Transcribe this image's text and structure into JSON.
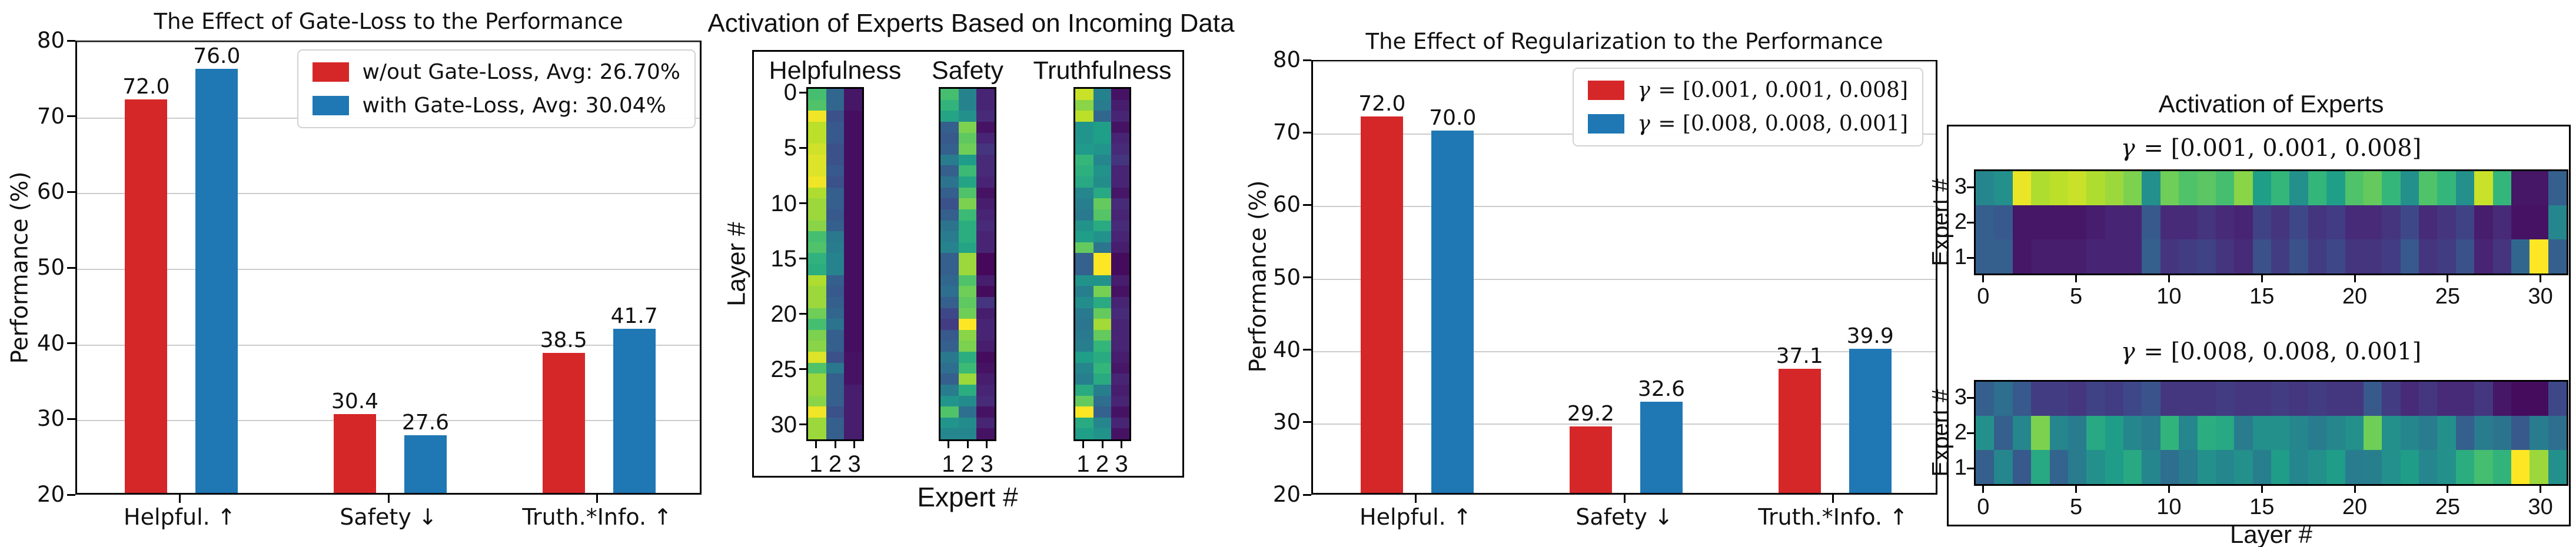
{
  "colors": {
    "red": "#d62728",
    "blue": "#1f77b4",
    "grid": "#cccccc",
    "spine": "#000000",
    "text": "#111111",
    "legend_border": "#d2d2d2",
    "background": "#ffffff"
  },
  "chart_data": [
    {
      "id": "gate_loss_bar",
      "type": "bar",
      "title": "The Effect of Gate-Loss to the Performance",
      "ylabel": "Performance (%)",
      "ylim": [
        20,
        80
      ],
      "yticks": [
        20,
        30,
        40,
        50,
        60,
        70,
        80
      ],
      "grid": true,
      "legend_position": "upper right",
      "categories": [
        "Helpful. ↑",
        "Safety ↓",
        "Truth.*Info. ↑"
      ],
      "series": [
        {
          "name": "w/out Gate-Loss, Avg: 26.70%",
          "color_key": "red",
          "math": false,
          "values": [
            72.0,
            30.4,
            38.5
          ],
          "labels": [
            "72.0",
            "30.4",
            "38.5"
          ]
        },
        {
          "name": "with Gate-Loss, Avg: 30.04%",
          "color_key": "blue",
          "math": false,
          "values": [
            76.0,
            27.6,
            41.7
          ],
          "labels": [
            "76.0",
            "27.6",
            "41.7"
          ]
        }
      ]
    },
    {
      "id": "activation_incoming_heatmaps",
      "type": "heatmap",
      "title": "Activation of Experts Based on Incoming Data",
      "xlabel": "Expert #",
      "ylabel": "Layer #",
      "colormap": "viridis",
      "orientation": "vertical",
      "xticks": [
        "1",
        "2",
        "3"
      ],
      "yticks": [
        "0",
        "5",
        "10",
        "15",
        "20",
        "25",
        "30"
      ],
      "ytick_layer_step": 5,
      "subplots": [
        {
          "label": "Helpfulness",
          "rows": 32,
          "cols": 3,
          "values": [
            [
              0.7,
              0.33,
              0.06
            ],
            [
              0.72,
              0.33,
              0.06
            ],
            [
              0.98,
              0.25,
              0.04
            ],
            [
              0.9,
              0.28,
              0.04
            ],
            [
              0.9,
              0.28,
              0.04
            ],
            [
              0.93,
              0.25,
              0.04
            ],
            [
              0.95,
              0.25,
              0.04
            ],
            [
              0.95,
              0.28,
              0.04
            ],
            [
              0.98,
              0.25,
              0.04
            ],
            [
              0.88,
              0.3,
              0.04
            ],
            [
              0.85,
              0.3,
              0.04
            ],
            [
              0.85,
              0.28,
              0.04
            ],
            [
              0.82,
              0.3,
              0.04
            ],
            [
              0.7,
              0.4,
              0.04
            ],
            [
              0.72,
              0.42,
              0.04
            ],
            [
              0.64,
              0.45,
              0.04
            ],
            [
              0.62,
              0.45,
              0.04
            ],
            [
              0.88,
              0.3,
              0.04
            ],
            [
              0.85,
              0.28,
              0.04
            ],
            [
              0.85,
              0.3,
              0.04
            ],
            [
              0.78,
              0.33,
              0.04
            ],
            [
              0.7,
              0.38,
              0.04
            ],
            [
              0.8,
              0.3,
              0.04
            ],
            [
              0.82,
              0.3,
              0.04
            ],
            [
              0.95,
              0.25,
              0.05
            ],
            [
              0.72,
              0.4,
              0.05
            ],
            [
              0.85,
              0.3,
              0.05
            ],
            [
              0.85,
              0.3,
              0.08
            ],
            [
              0.82,
              0.3,
              0.08
            ],
            [
              0.98,
              0.25,
              0.08
            ],
            [
              0.85,
              0.3,
              0.08
            ],
            [
              0.85,
              0.3,
              0.08
            ]
          ]
        },
        {
          "label": "Safety",
          "rows": 32,
          "cols": 3,
          "values": [
            [
              0.7,
              0.45,
              0.1
            ],
            [
              0.65,
              0.45,
              0.1
            ],
            [
              0.58,
              0.5,
              0.12
            ],
            [
              0.3,
              0.8,
              0.05
            ],
            [
              0.28,
              0.75,
              0.1
            ],
            [
              0.3,
              0.78,
              0.15
            ],
            [
              0.42,
              0.55,
              0.12
            ],
            [
              0.3,
              0.68,
              0.12
            ],
            [
              0.38,
              0.58,
              0.1
            ],
            [
              0.3,
              0.72,
              0.05
            ],
            [
              0.25,
              0.8,
              0.08
            ],
            [
              0.3,
              0.68,
              0.1
            ],
            [
              0.38,
              0.62,
              0.12
            ],
            [
              0.42,
              0.62,
              0.1
            ],
            [
              0.45,
              0.58,
              0.1
            ],
            [
              0.3,
              0.85,
              0.02
            ],
            [
              0.3,
              0.85,
              0.02
            ],
            [
              0.33,
              0.72,
              0.08
            ],
            [
              0.36,
              0.78,
              0.03
            ],
            [
              0.3,
              0.75,
              0.15
            ],
            [
              0.22,
              0.78,
              0.08
            ],
            [
              0.18,
              1.0,
              0.1
            ],
            [
              0.28,
              0.82,
              0.1
            ],
            [
              0.3,
              0.8,
              0.08
            ],
            [
              0.4,
              0.62,
              0.03
            ],
            [
              0.36,
              0.68,
              0.05
            ],
            [
              0.3,
              0.85,
              0.08
            ],
            [
              0.42,
              0.62,
              0.1
            ],
            [
              0.52,
              0.48,
              0.12
            ],
            [
              0.72,
              0.36,
              0.05
            ],
            [
              0.52,
              0.48,
              0.1
            ],
            [
              0.46,
              0.46,
              0.05
            ]
          ]
        },
        {
          "label": "Truthfulness",
          "rows": 32,
          "cols": 3,
          "values": [
            [
              0.92,
              0.44,
              0.05
            ],
            [
              0.82,
              0.42,
              0.08
            ],
            [
              0.9,
              0.33,
              0.1
            ],
            [
              0.52,
              0.56,
              0.05
            ],
            [
              0.52,
              0.56,
              0.1
            ],
            [
              0.54,
              0.52,
              0.12
            ],
            [
              0.66,
              0.46,
              0.15
            ],
            [
              0.63,
              0.51,
              0.1
            ],
            [
              0.6,
              0.49,
              0.1
            ],
            [
              0.46,
              0.6,
              0.06
            ],
            [
              0.43,
              0.76,
              0.12
            ],
            [
              0.41,
              0.73,
              0.1
            ],
            [
              0.51,
              0.61,
              0.12
            ],
            [
              0.56,
              0.51,
              0.1
            ],
            [
              0.76,
              0.39,
              0.08
            ],
            [
              0.31,
              1.0,
              0.03
            ],
            [
              0.31,
              1.0,
              0.03
            ],
            [
              0.51,
              0.51,
              0.08
            ],
            [
              0.43,
              0.79,
              0.05
            ],
            [
              0.49,
              0.61,
              0.1
            ],
            [
              0.41,
              0.76,
              0.12
            ],
            [
              0.39,
              0.86,
              0.1
            ],
            [
              0.41,
              0.76,
              0.1
            ],
            [
              0.43,
              0.66,
              0.1
            ],
            [
              0.56,
              0.61,
              0.08
            ],
            [
              0.46,
              0.66,
              0.06
            ],
            [
              0.43,
              0.61,
              0.1
            ],
            [
              0.61,
              0.43,
              0.08
            ],
            [
              0.76,
              0.36,
              0.1
            ],
            [
              1.0,
              0.31,
              0.05
            ],
            [
              0.61,
              0.46,
              0.1
            ],
            [
              0.56,
              0.51,
              0.05
            ]
          ]
        }
      ]
    },
    {
      "id": "regularization_bar",
      "type": "bar",
      "title": "The Effect of Regularization to the Performance",
      "ylabel": "Performance (%)",
      "ylim": [
        20,
        80
      ],
      "yticks": [
        20,
        30,
        40,
        50,
        60,
        70,
        80
      ],
      "grid": true,
      "legend_position": "upper right",
      "categories": [
        "Helpful. ↑",
        "Safety ↓",
        "Truth.*Info. ↑"
      ],
      "series": [
        {
          "name": "γ = [0.001, 0.001, 0.008]",
          "color_key": "red",
          "math": true,
          "values": [
            72.0,
            29.2,
            37.1
          ],
          "labels": [
            "72.0",
            "29.2",
            "37.1"
          ]
        },
        {
          "name": "γ = [0.008, 0.008, 0.001]",
          "color_key": "blue",
          "math": true,
          "values": [
            70.0,
            32.6,
            39.9
          ],
          "labels": [
            "70.0",
            "32.6",
            "39.9"
          ]
        }
      ]
    },
    {
      "id": "activation_experts_heatmaps",
      "type": "heatmap",
      "title": "Activation of Experts",
      "xlabel": "Layer #",
      "ylabel": "Expert #",
      "colormap": "viridis",
      "orientation": "horizontal",
      "xticks": [
        "0",
        "5",
        "10",
        "15",
        "20",
        "25",
        "30"
      ],
      "xtick_layer_step": 5,
      "yticks": [
        "3",
        "2",
        "1"
      ],
      "subplots": [
        {
          "label": "γ = [0.001, 0.001, 0.008]",
          "math": true,
          "rows": 3,
          "cols": 32,
          "values": [
            [
              0.46,
              0.5,
              0.97,
              0.88,
              0.9,
              0.92,
              0.88,
              0.85,
              0.8,
              0.5,
              0.78,
              0.72,
              0.74,
              0.7,
              0.82,
              0.56,
              0.66,
              0.5,
              0.66,
              0.56,
              0.72,
              0.76,
              0.66,
              0.5,
              0.72,
              0.66,
              0.5,
              0.92,
              0.66,
              0.06,
              0.06,
              0.3
            ],
            [
              0.3,
              0.28,
              0.06,
              0.06,
              0.06,
              0.06,
              0.08,
              0.1,
              0.1,
              0.28,
              0.12,
              0.12,
              0.15,
              0.12,
              0.1,
              0.2,
              0.15,
              0.22,
              0.15,
              0.18,
              0.12,
              0.12,
              0.15,
              0.22,
              0.12,
              0.15,
              0.2,
              0.08,
              0.12,
              0.05,
              0.05,
              0.46
            ],
            [
              0.3,
              0.3,
              0.06,
              0.08,
              0.08,
              0.08,
              0.1,
              0.1,
              0.1,
              0.3,
              0.15,
              0.18,
              0.2,
              0.15,
              0.12,
              0.25,
              0.18,
              0.25,
              0.18,
              0.22,
              0.15,
              0.15,
              0.18,
              0.28,
              0.15,
              0.18,
              0.25,
              0.1,
              0.15,
              0.33,
              1.0,
              0.3
            ]
          ]
        },
        {
          "label": "γ = [0.008, 0.008, 0.001]",
          "math": true,
          "rows": 3,
          "cols": 32,
          "values": [
            [
              0.3,
              0.36,
              0.28,
              0.18,
              0.18,
              0.16,
              0.2,
              0.18,
              0.22,
              0.26,
              0.16,
              0.16,
              0.16,
              0.18,
              0.16,
              0.16,
              0.18,
              0.16,
              0.18,
              0.16,
              0.16,
              0.28,
              0.18,
              0.12,
              0.16,
              0.12,
              0.12,
              0.16,
              0.06,
              0.03,
              0.03,
              0.22
            ],
            [
              0.5,
              0.3,
              0.46,
              0.8,
              0.46,
              0.42,
              0.6,
              0.55,
              0.46,
              0.42,
              0.65,
              0.46,
              0.62,
              0.6,
              0.42,
              0.5,
              0.5,
              0.46,
              0.42,
              0.46,
              0.5,
              0.78,
              0.5,
              0.46,
              0.42,
              0.5,
              0.3,
              0.42,
              0.38,
              0.28,
              0.42,
              0.36
            ],
            [
              0.3,
              0.46,
              0.28,
              0.6,
              0.32,
              0.42,
              0.5,
              0.55,
              0.6,
              0.46,
              0.36,
              0.42,
              0.5,
              0.46,
              0.5,
              0.43,
              0.55,
              0.46,
              0.5,
              0.55,
              0.42,
              0.43,
              0.5,
              0.55,
              0.46,
              0.5,
              0.62,
              0.7,
              0.65,
              1.0,
              0.85,
              0.5
            ]
          ]
        }
      ]
    }
  ]
}
